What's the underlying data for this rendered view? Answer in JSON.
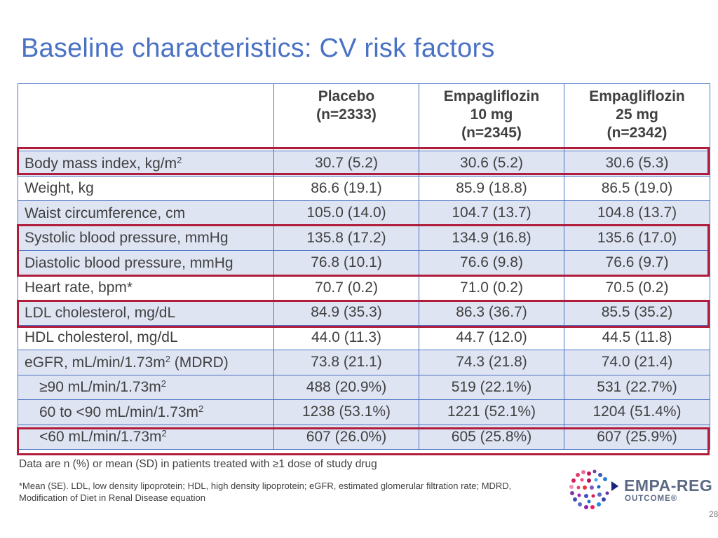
{
  "slide": {
    "title": "Baseline characteristics: CV risk factors",
    "page_number": "28"
  },
  "table": {
    "headers": [
      [
        ""
      ],
      [
        "Placebo",
        "(n=2333)"
      ],
      [
        "Empagliflozin",
        "10 mg",
        "(n=2345)"
      ],
      [
        "Empagliflozin",
        "25 mg",
        "(n=2342)"
      ]
    ],
    "rows": [
      {
        "label": "Body mass index, kg/m",
        "sup": "2",
        "suffix": "",
        "values": [
          "30.7 (5.2)",
          "30.6 (5.2)",
          "30.6 (5.3)"
        ]
      },
      {
        "label": "Weight, kg",
        "sup": "",
        "suffix": "",
        "values": [
          "86.6 (19.1)",
          "85.9 (18.8)",
          "86.5 (19.0)"
        ]
      },
      {
        "label": "Waist circumference, cm",
        "sup": "",
        "suffix": "",
        "values": [
          "105.0 (14.0)",
          "104.7 (13.7)",
          "104.8 (13.7)"
        ]
      },
      {
        "label": "Systolic blood pressure, mmHg",
        "sup": "",
        "suffix": "",
        "values": [
          "135.8 (17.2)",
          "134.9 (16.8)",
          "135.6 (17.0)"
        ]
      },
      {
        "label": "Diastolic blood pressure, mmHg",
        "sup": "",
        "suffix": "",
        "values": [
          "76.8 (10.1)",
          "76.6 (9.8)",
          "76.6 (9.7)"
        ]
      },
      {
        "label": "Heart rate, bpm*",
        "sup": "",
        "suffix": "",
        "values": [
          "70.7 (0.2)",
          "71.0 (0.2)",
          "70.5 (0.2)"
        ]
      },
      {
        "label": "LDL cholesterol, mg/dL",
        "sup": "",
        "suffix": "",
        "values": [
          "84.9 (35.3)",
          "86.3 (36.7)",
          "85.5 (35.2)"
        ]
      },
      {
        "label": "HDL cholesterol, mg/dL",
        "sup": "",
        "suffix": "",
        "values": [
          "44.0 (11.3)",
          "44.7 (12.0)",
          "44.5 (11.8)"
        ]
      },
      {
        "label": "eGFR, mL/min/1.73m",
        "sup": "2",
        "suffix": " (MDRD)",
        "values": [
          "73.8 (21.1)",
          "74.3 (21.8)",
          "74.0 (21.4)"
        ]
      },
      {
        "label": "≥90 mL/min/1.73m",
        "sup": "2",
        "suffix": "",
        "values": [
          "488 (20.9%)",
          "519 (22.1%)",
          "531 (22.7%)"
        ]
      },
      {
        "label": "60 to <90 mL/min/1.73m",
        "sup": "2",
        "suffix": "",
        "values": [
          "1238 (53.1%)",
          "1221 (52.1%)",
          "1204 (51.4%)"
        ]
      },
      {
        "label": "<60 mL/min/1.73m",
        "sup": "2",
        "suffix": "",
        "values": [
          "607 (26.0%)",
          "605 (25.8%)",
          "607 (25.9%)"
        ]
      }
    ]
  },
  "footnotes": {
    "main": "Data are n (%) or mean (SD) in patients treated with ≥1 dose of study drug",
    "abbreviations": "*Mean (SE). LDL, low density lipoprotein; HDL, high density lipoprotein; eGFR, estimated glomerular filtration rate; MDRD, Modification of Diet in Renal Disease equation"
  },
  "logo": {
    "line1": "EMPA-REG",
    "line2": "OUTCOME®"
  },
  "colors": {
    "accent": "#4a72c4",
    "row_shade": "#dfe4f3",
    "highlight": "#b01c3c"
  }
}
